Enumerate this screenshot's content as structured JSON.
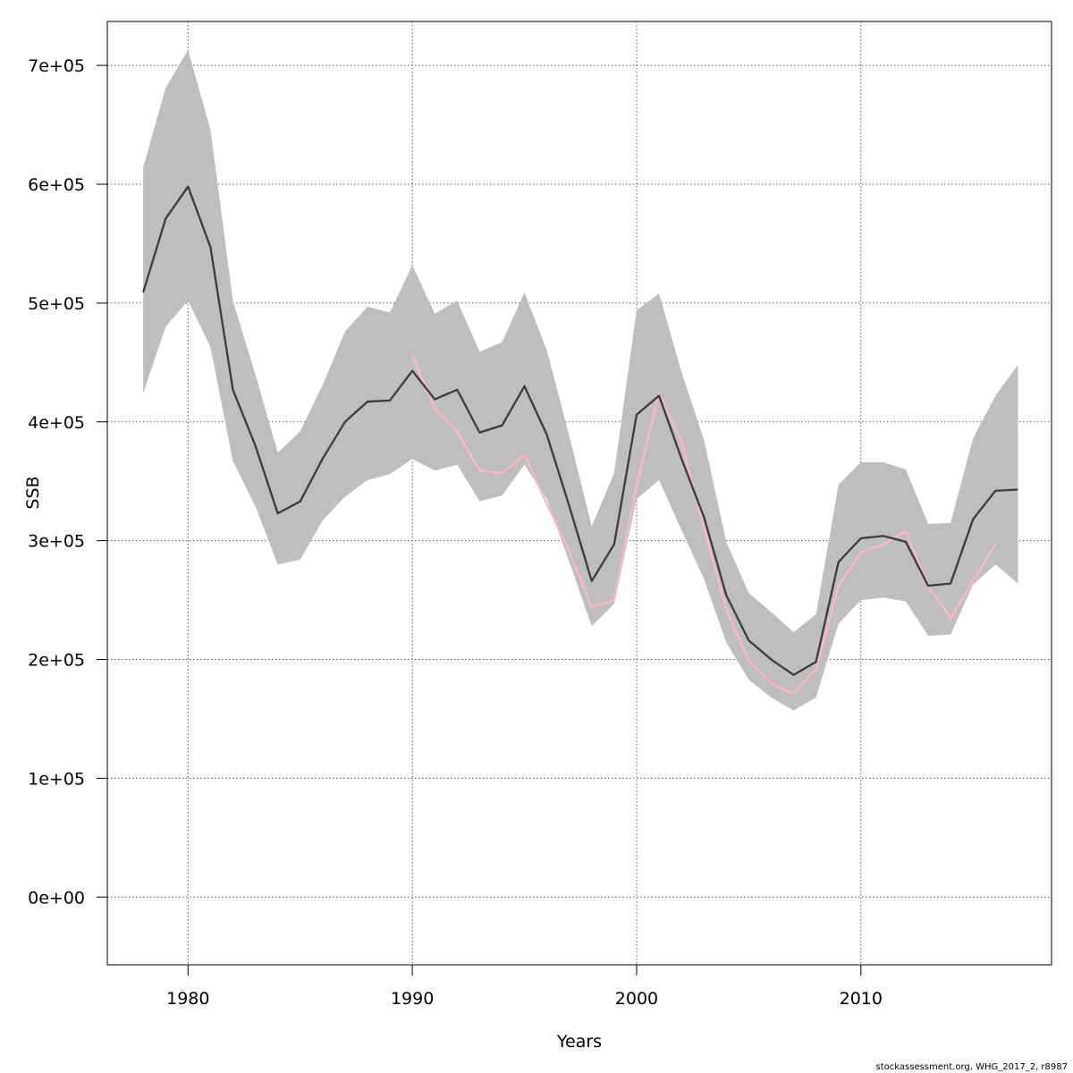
{
  "chart_data": {
    "type": "line",
    "xlabel": "Years",
    "ylabel": "SSB",
    "xlim": [
      1976.4,
      2018.5
    ],
    "ylim": [
      -57000,
      737000
    ],
    "x_ticks": [
      1980,
      1990,
      2000,
      2010
    ],
    "y_ticks": [
      0,
      100000,
      200000,
      300000,
      400000,
      500000,
      600000,
      700000
    ],
    "y_tick_labels": [
      "0e+00",
      "1e+05",
      "2e+05",
      "3e+05",
      "4e+05",
      "5e+05",
      "6e+05",
      "7e+05"
    ],
    "grid": true,
    "colors": {
      "band": "#bebebe",
      "main": "#3c3c3c",
      "retro": "#ffb6c1",
      "grid": "#555555"
    },
    "band": {
      "x": [
        1978,
        1979,
        1980,
        1981,
        1982,
        1983,
        1984,
        1985,
        1986,
        1987,
        1988,
        1989,
        1990,
        1991,
        1992,
        1993,
        1994,
        1995,
        1996,
        1997,
        1998,
        1999,
        2000,
        2001,
        2002,
        2003,
        2004,
        2005,
        2006,
        2007,
        2008,
        2009,
        2010,
        2011,
        2012,
        2013,
        2014,
        2015,
        2016,
        2017
      ],
      "upper": [
        614000,
        681000,
        713000,
        646000,
        502000,
        440000,
        374000,
        392000,
        431000,
        476000,
        497000,
        492000,
        532000,
        491000,
        502000,
        459000,
        467000,
        509000,
        460000,
        388000,
        312000,
        357000,
        494000,
        508000,
        442000,
        385000,
        299000,
        256000,
        240000,
        223000,
        238000,
        347000,
        366000,
        366000,
        360000,
        314000,
        315000,
        386000,
        422000,
        448000
      ],
      "lower": [
        424000,
        480000,
        502000,
        463000,
        367000,
        329000,
        280000,
        284000,
        317000,
        337000,
        351000,
        356000,
        369000,
        359000,
        364000,
        333000,
        338000,
        364000,
        335000,
        282000,
        228000,
        247000,
        335000,
        351000,
        309000,
        268000,
        214000,
        183000,
        168000,
        157000,
        168000,
        230000,
        250000,
        252000,
        249000,
        220000,
        221000,
        263000,
        280000,
        264000
      ]
    },
    "series": [
      {
        "x": [
          1978,
          1979,
          1980,
          1981,
          1982,
          1983,
          1984,
          1985,
          1986,
          1987,
          1988,
          1989,
          1990,
          1991,
          1992,
          1993,
          1994,
          1995,
          1996,
          1997,
          1998,
          1999,
          2000,
          2001,
          2002,
          2003,
          2004,
          2005,
          2006,
          2007,
          2008,
          2009,
          2010,
          2011,
          2012,
          2013,
          2014,
          2015,
          2016,
          2017
        ],
        "values": [
          509000,
          571000,
          598000,
          547000,
          427000,
          380000,
          323000,
          333000,
          369000,
          400000,
          417000,
          418000,
          443000,
          419000,
          427000,
          391000,
          397000,
          430000,
          389000,
          329000,
          266000,
          297000,
          406000,
          422000,
          369000,
          320000,
          254000,
          216000,
          200000,
          187000,
          198000,
          282000,
          302000,
          304000,
          299000,
          262000,
          264000,
          318000,
          342000,
          343000
        ]
      },
      {
        "x": [
          1990,
          1991,
          1992,
          1993,
          1994,
          1995,
          1996,
          1997,
          1998,
          1999,
          2000,
          2001,
          2002,
          2003,
          2004,
          2005,
          2006,
          2007,
          2008,
          2009,
          2010,
          2011,
          2012,
          2013,
          2014,
          2015,
          2016
        ],
        "values": [
          456000,
          411000,
          392000,
          359000,
          357000,
          372000,
          331000,
          291000,
          244000,
          250000,
          346000,
          424000,
          383000,
          311000,
          242000,
          199000,
          180000,
          171000,
          192000,
          262000,
          290000,
          297000,
          308000,
          262000,
          235000,
          266000,
          297000
        ]
      }
    ]
  },
  "footer": {
    "credit": "stockassessment.org, WHG_2017_2, r8987"
  }
}
